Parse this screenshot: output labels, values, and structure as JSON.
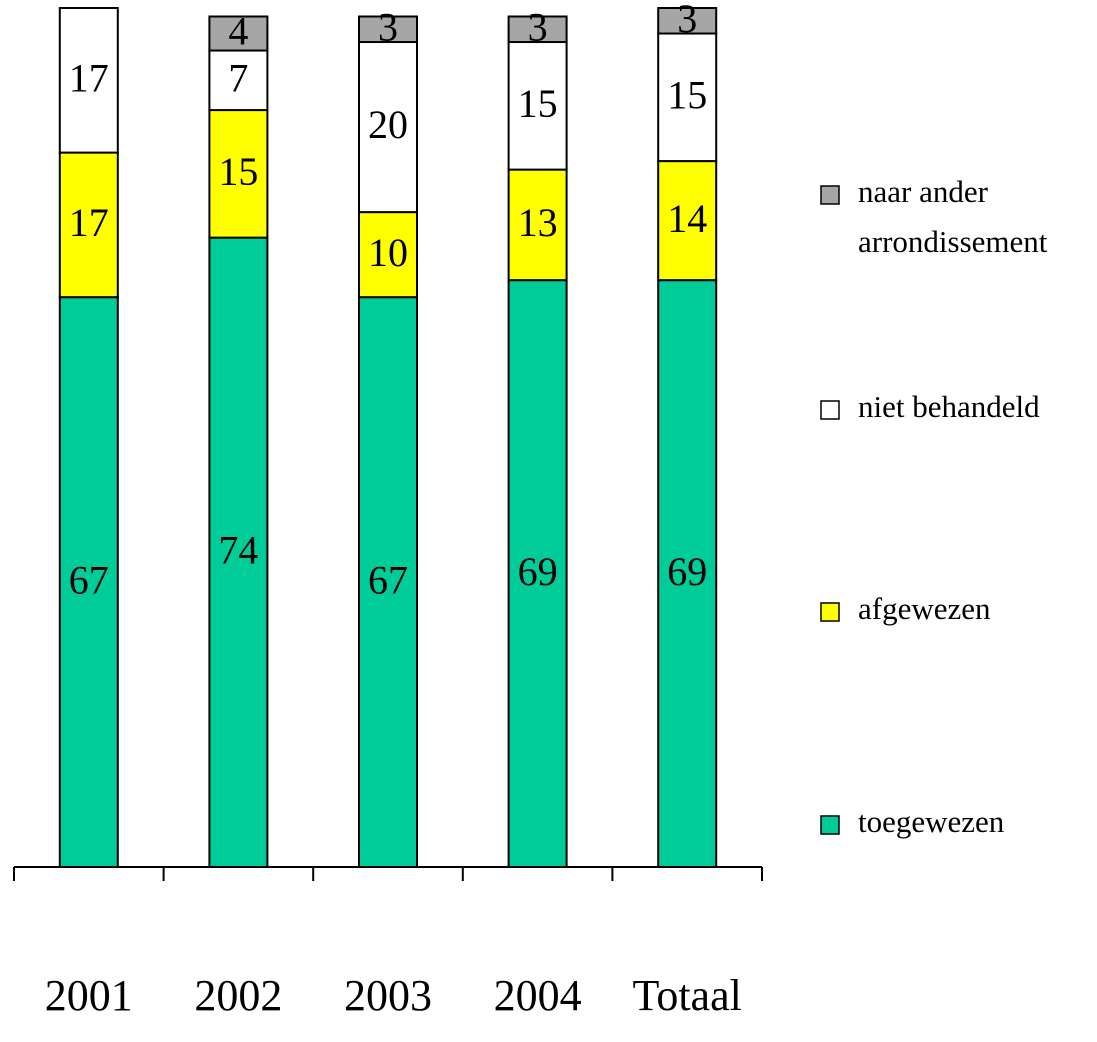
{
  "chart_data": {
    "type": "stacked-bar",
    "categories": [
      "2001",
      "2002",
      "2003",
      "2004",
      "Totaal"
    ],
    "series": [
      {
        "name": "toegewezen",
        "color": "#00cc99",
        "values": [
          67,
          74,
          67,
          69,
          69
        ]
      },
      {
        "name": "afgewezen",
        "color": "#ffff00",
        "values": [
          17,
          15,
          10,
          13,
          14
        ]
      },
      {
        "name": "niet behandeld",
        "color": "#ffffff",
        "values": [
          17,
          7,
          20,
          15,
          15
        ]
      },
      {
        "name": "naar ander arrondissement",
        "color": "#a6a6a6",
        "values": [
          null,
          4,
          3,
          3,
          3
        ]
      }
    ],
    "legend": "right"
  }
}
